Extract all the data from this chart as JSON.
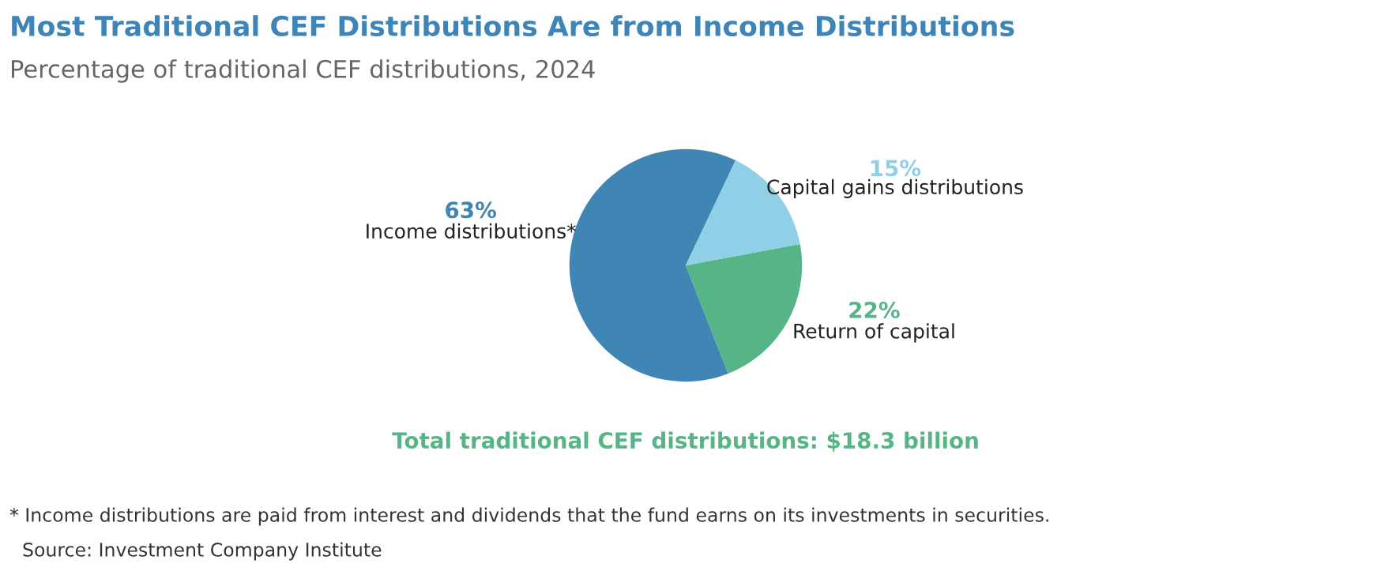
{
  "chart_data": {
    "type": "pie",
    "title": "Most Traditional CEF Distributions Are from Income Distributions",
    "subtitle": "Percentage of traditional CEF distributions, 2024",
    "categories": [
      "Income distributions*",
      "Return of capital",
      "Capital gains distributions"
    ],
    "values": [
      63,
      22,
      15
    ],
    "colors": [
      "#3f86b5",
      "#56b487",
      "#8fd0e6"
    ],
    "value_labels": [
      "63%",
      "22%",
      "15%"
    ],
    "annotations": [
      "Total traditional CEF distributions: $18.3 billion",
      "* Income distributions are paid from interest and dividends that the fund earns on its investments in securities.",
      "Source: Investment Company Institute"
    ]
  }
}
